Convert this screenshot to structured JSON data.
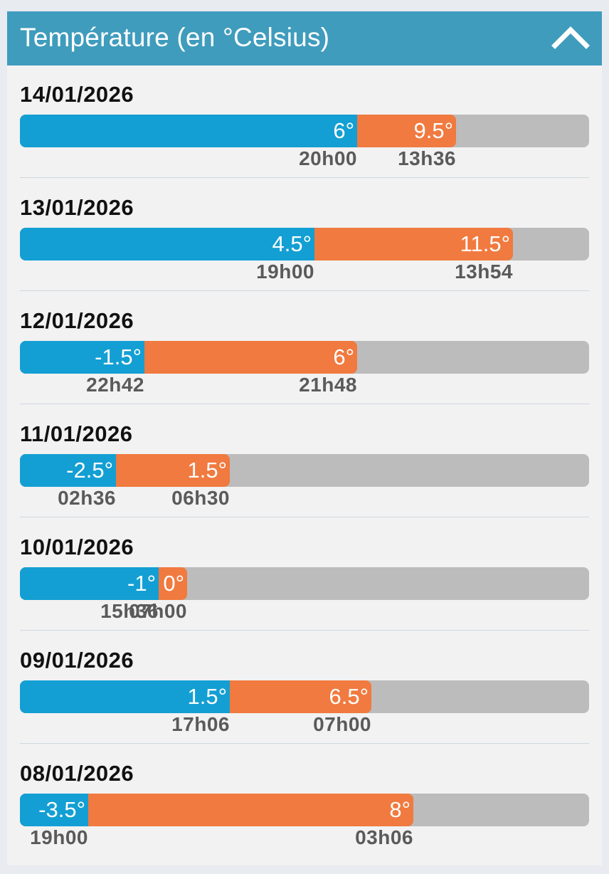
{
  "header": {
    "title": "Température (en °Celsius)",
    "icon": "chevron-up-icon",
    "background": "#3f9cbd"
  },
  "colors": {
    "min_bar": "#139fd3",
    "max_bar": "#f07a3f",
    "track": "#bcbcbc"
  },
  "days": [
    {
      "date": "14/01/2026",
      "min": 6,
      "min_label": "6°",
      "min_time": "20h00",
      "max": 9.5,
      "max_label": "9.5°",
      "max_time": "13h36"
    },
    {
      "date": "13/01/2026",
      "min": 4.5,
      "min_label": "4.5°",
      "min_time": "19h00",
      "max": 11.5,
      "max_label": "11.5°",
      "max_time": "13h54"
    },
    {
      "date": "12/01/2026",
      "min": -1.5,
      "min_label": "-1.5°",
      "min_time": "22h42",
      "max": 6,
      "max_label": "6°",
      "max_time": "21h48"
    },
    {
      "date": "11/01/2026",
      "min": -2.5,
      "min_label": "-2.5°",
      "min_time": "02h36",
      "max": 1.5,
      "max_label": "1.5°",
      "max_time": "06h30"
    },
    {
      "date": "10/01/2026",
      "min": -1,
      "min_label": "-1°",
      "min_time": "15h36",
      "max": 0,
      "max_label": "0°",
      "max_time": "07h00"
    },
    {
      "date": "09/01/2026",
      "min": 1.5,
      "min_label": "1.5°",
      "min_time": "17h06",
      "max": 6.5,
      "max_label": "6.5°",
      "max_time": "07h00"
    },
    {
      "date": "08/01/2026",
      "min": -3.5,
      "min_label": "-3.5°",
      "min_time": "19h00",
      "max": 8,
      "max_label": "8°",
      "max_time": "03h06"
    }
  ]
}
